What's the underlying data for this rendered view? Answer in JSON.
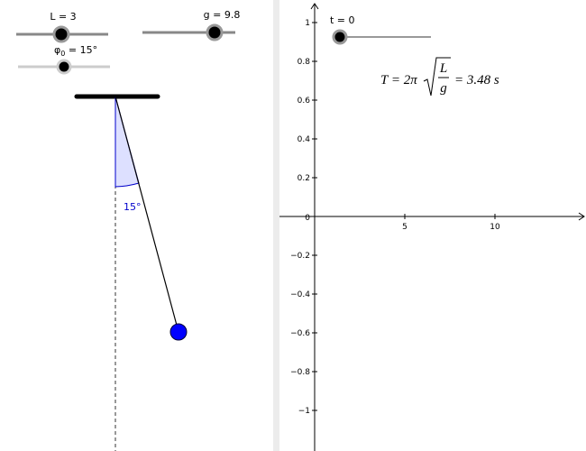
{
  "sliders": {
    "length": {
      "label": "L = 3"
    },
    "gravity": {
      "label": "g = 9.8"
    },
    "angle": {
      "symbol": "φ",
      "subscript": "0",
      "label": " = 15°"
    },
    "time": {
      "label": "t = 0"
    }
  },
  "pendulum": {
    "angle_label": "15°"
  },
  "formula": {
    "lhs": "T = 2π",
    "numerator": "L",
    "denominator": "g",
    "rhs": "= 3.48 s"
  },
  "graph": {
    "xticks": [
      5,
      10
    ],
    "yticks": [
      1,
      0.8,
      0.6,
      0.4,
      0.2,
      0,
      {
        "value": -0.2,
        "label": "−0.2"
      },
      {
        "value": -0.4,
        "label": "−0.4"
      },
      {
        "value": -0.6,
        "label": "−0.6"
      },
      {
        "value": -0.8,
        "label": "−0.8"
      },
      {
        "value": -1,
        "label": "−1"
      }
    ]
  }
}
